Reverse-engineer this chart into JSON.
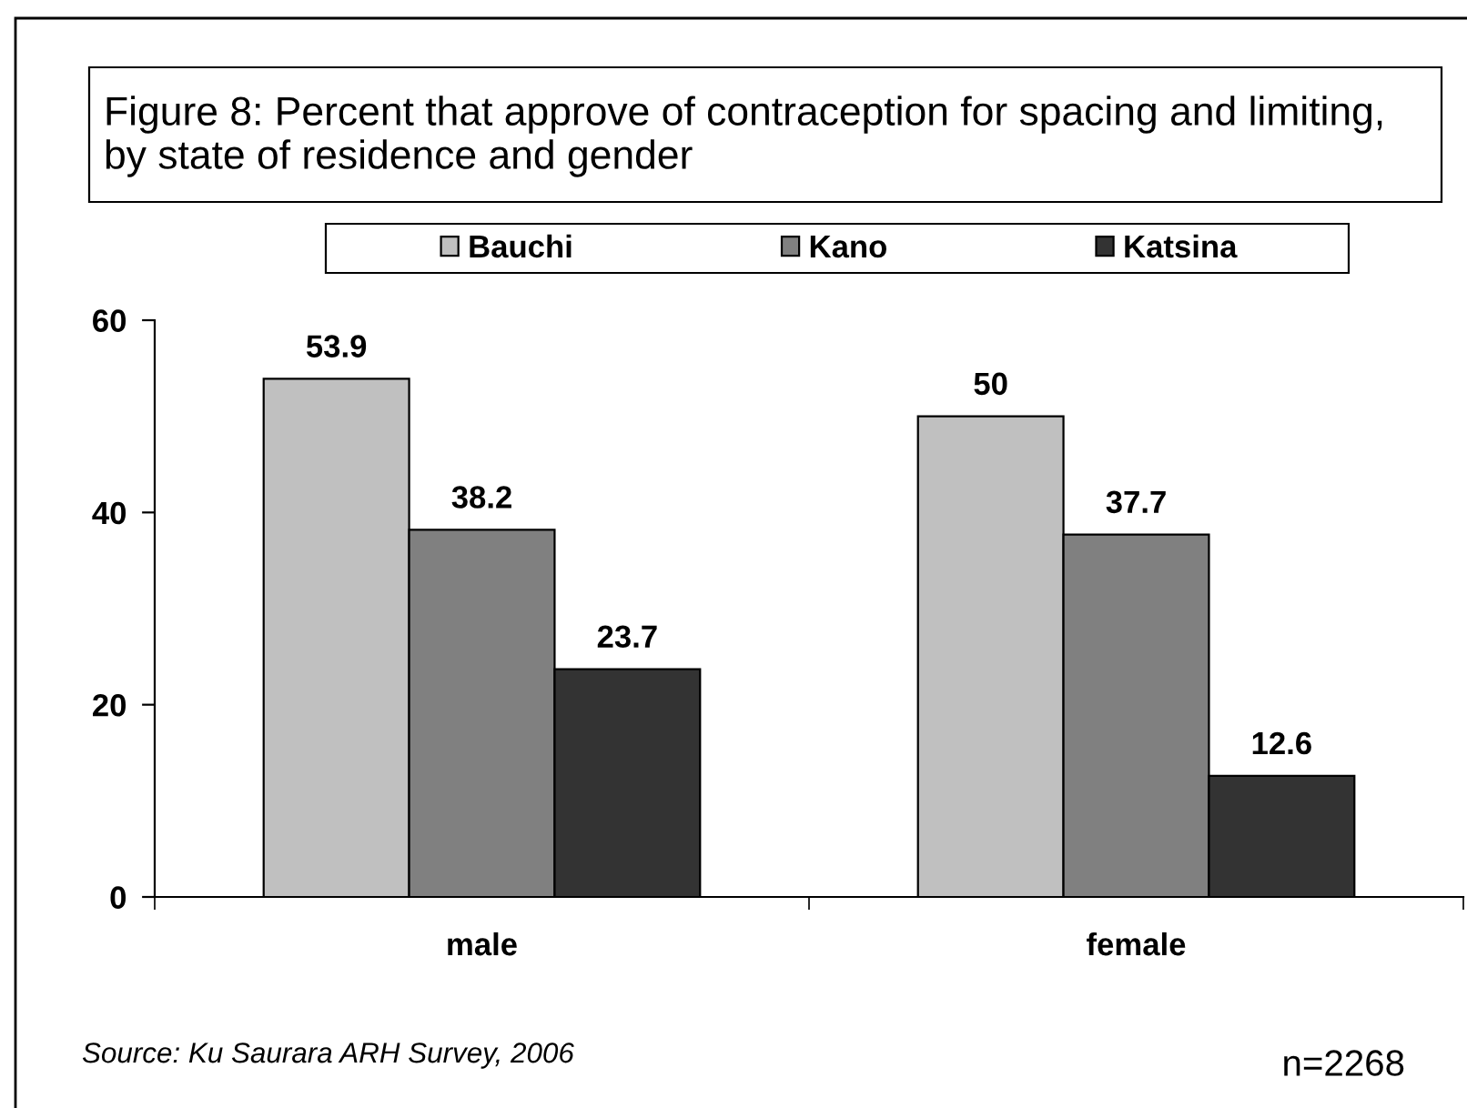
{
  "chart_data": {
    "type": "bar",
    "title": "Figure 8: Percent that approve of contraception for spacing and limiting,\nby state of residence and gender",
    "categories": [
      "male",
      "female"
    ],
    "series": [
      {
        "name": "Bauchi",
        "color": "#c0c0c0",
        "values": [
          53.9,
          50
        ]
      },
      {
        "name": "Kano",
        "color": "#808080",
        "values": [
          38.2,
          37.7
        ]
      },
      {
        "name": "Katsina",
        "color": "#333333",
        "values": [
          23.7,
          12.6
        ]
      }
    ],
    "ylim": [
      0,
      60
    ],
    "yticks": [
      0,
      20,
      40,
      60
    ],
    "data_labels": true,
    "grid": false,
    "legend": "top",
    "annotations": [
      "Source: Ku Saurara ARH Survey, 2006",
      "n=2268"
    ]
  }
}
